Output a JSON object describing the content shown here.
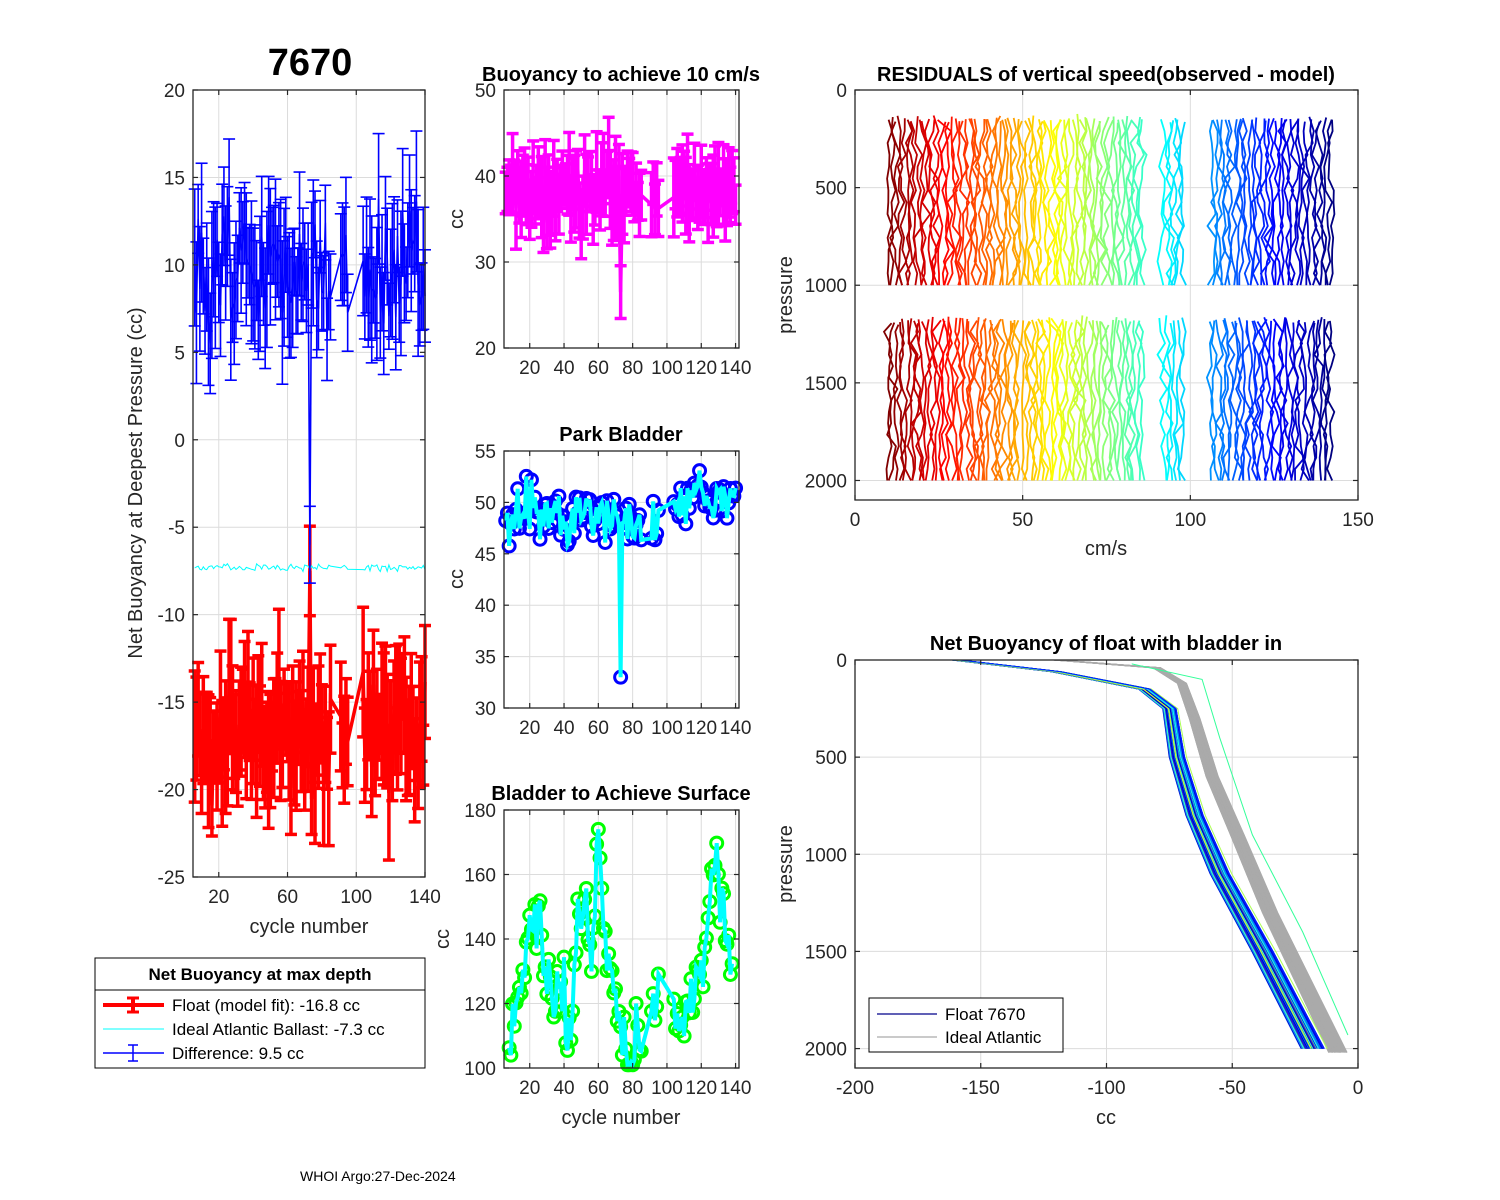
{
  "figure": {
    "float_id": "7670",
    "footer": "WHOI Argo:27-Dec-2024"
  },
  "chart_data": [
    {
      "id": "netbuoy",
      "type": "line",
      "title": "7670",
      "xlabel": "cycle number",
      "ylabel": "Net Buoyancy at Deepest Pressure (cc)",
      "xlim": [
        5,
        140
      ],
      "ylim": [
        -25,
        20
      ],
      "xticks": [
        20,
        60,
        100,
        140
      ],
      "yticks": [
        -25,
        -20,
        -15,
        -10,
        -5,
        0,
        5,
        10,
        15,
        20
      ],
      "grid": true,
      "legend": {
        "title": "Net Buoyancy at max depth",
        "placement": "below",
        "entries": [
          {
            "label": "Float (model fit): -16.8 cc",
            "color": "#ff0000"
          },
          {
            "label": "Ideal Atlantic Ballast:  -7.3 cc",
            "color": "#00ffff"
          },
          {
            "label": "Difference:   9.5 cc",
            "color": "#0000ff"
          }
        ]
      },
      "series": [
        {
          "name": "Float (model fit)",
          "color": "#ff0000",
          "mean": -16.8,
          "spread": 2.5,
          "errorbar": 2.8,
          "outlier": {
            "x": 73,
            "y": -7.5
          }
        },
        {
          "name": "Ideal Atlantic Ballast",
          "color": "#00ffff",
          "mean": -7.3,
          "spread": 0.15
        },
        {
          "name": "Difference",
          "color": "#0000ff",
          "mean": 9.5,
          "spread": 2.5,
          "errorbar": 3.0,
          "outlier": {
            "x": 73,
            "y": -6.0
          }
        }
      ],
      "cycle_gaps": [
        [
          86,
          90
        ],
        [
          96,
          103
        ]
      ]
    },
    {
      "id": "buoy10",
      "type": "line",
      "title": "Buoyancy to achieve 10 cm/s",
      "xlabel": "",
      "ylabel": "cc",
      "xlim": [
        5,
        142
      ],
      "ylim": [
        20,
        50
      ],
      "xticks": [
        20,
        40,
        60,
        80,
        100,
        120,
        140
      ],
      "yticks": [
        20,
        30,
        40,
        50
      ],
      "grid": true,
      "series": [
        {
          "name": "buoyancy",
          "color": "#ff00ff",
          "mean": 38.5,
          "spread": 2.5,
          "errorbar": 3.5,
          "outlier": {
            "x": 73,
            "y": 26.5
          }
        }
      ]
    },
    {
      "id": "park",
      "type": "line",
      "title": "Park Bladder",
      "xlabel": "",
      "ylabel": "cc",
      "xlim": [
        5,
        142
      ],
      "ylim": [
        30,
        55
      ],
      "xticks": [
        20,
        40,
        60,
        80,
        100,
        120,
        140
      ],
      "yticks": [
        30,
        35,
        40,
        45,
        50,
        55
      ],
      "grid": true,
      "series": [
        {
          "name": "park bladder",
          "color": "#00ffff",
          "marker_color": "#0000ff",
          "mean": 48.5,
          "spread": 2.3,
          "outlier": {
            "x": 73,
            "y": 33
          }
        }
      ]
    },
    {
      "id": "surface",
      "type": "line",
      "title": "Bladder to Achieve Surface",
      "xlabel": "cycle number",
      "ylabel": "cc",
      "xlim": [
        5,
        142
      ],
      "ylim": [
        100,
        180
      ],
      "xticks": [
        20,
        40,
        60,
        80,
        100,
        120,
        140
      ],
      "yticks": [
        100,
        120,
        140,
        160,
        180
      ],
      "grid": true,
      "series": [
        {
          "name": "surface bladder",
          "color": "#00ffff",
          "marker_color": "#00ff00",
          "anchors": [
            [
              8,
              114
            ],
            [
              12,
              118
            ],
            [
              18,
              140
            ],
            [
              22,
              145
            ],
            [
              26,
              140
            ],
            [
              30,
              125
            ],
            [
              35,
              130
            ],
            [
              40,
              122
            ],
            [
              44,
              108
            ],
            [
              48,
              145
            ],
            [
              52,
              155
            ],
            [
              56,
              128
            ],
            [
              60,
              174
            ],
            [
              64,
              140
            ],
            [
              68,
              130
            ],
            [
              72,
              115
            ],
            [
              76,
              105
            ],
            [
              80,
              102
            ],
            [
              84,
              110
            ],
            [
              90,
              116
            ],
            [
              95,
              124
            ],
            [
              105,
              112
            ],
            [
              110,
              118
            ],
            [
              115,
              122
            ],
            [
              120,
              132
            ],
            [
              125,
              147
            ],
            [
              128,
              162
            ],
            [
              132,
              150
            ],
            [
              138,
              134
            ]
          ]
        }
      ]
    },
    {
      "id": "residuals",
      "type": "line",
      "title": "RESIDUALS of vertical speed(observed - model)",
      "xlabel": "cm/s",
      "ylabel": "pressure",
      "xlim": [
        0,
        150
      ],
      "ylim": [
        0,
        2100
      ],
      "y_reversed": true,
      "xticks": [
        0,
        50,
        100,
        150
      ],
      "yticks": [
        0,
        500,
        1000,
        1500,
        2000
      ],
      "grid": true,
      "colormap": "jet",
      "segments": [
        [
          150,
          1000
        ],
        [
          1180,
          2000
        ]
      ],
      "x_offsets_range": [
        10,
        142
      ],
      "gap_ranges": [
        [
          86,
          92
        ],
        [
          98,
          106
        ]
      ]
    },
    {
      "id": "bladderin",
      "type": "line",
      "title": "Net Buoyancy of float with bladder in",
      "xlabel": "cc",
      "ylabel": "pressure",
      "xlim": [
        -200,
        0
      ],
      "ylim": [
        0,
        2100
      ],
      "y_reversed": true,
      "xticks": [
        -200,
        -150,
        -100,
        -50,
        0
      ],
      "yticks": [
        0,
        500,
        1000,
        1500,
        2000
      ],
      "grid": true,
      "legend": {
        "placement": "bottom-left",
        "entries": [
          {
            "label": "Float 7670",
            "color": "#00008b"
          },
          {
            "label": "Ideal Atlantic",
            "color": "#aaaaaa"
          }
        ]
      },
      "profile_float": [
        [
          -160,
          0
        ],
        [
          -120,
          60
        ],
        [
          -85,
          150
        ],
        [
          -75,
          250
        ],
        [
          -72,
          500
        ],
        [
          -65,
          800
        ],
        [
          -55,
          1100
        ],
        [
          -38,
          1500
        ],
        [
          -18,
          2000
        ]
      ],
      "profile_ideal": [
        [
          -120,
          0
        ],
        [
          -80,
          40
        ],
        [
          -70,
          120
        ],
        [
          -65,
          300
        ],
        [
          -58,
          600
        ],
        [
          -48,
          900
        ],
        [
          -35,
          1300
        ],
        [
          -20,
          1700
        ],
        [
          -8,
          2020
        ]
      ],
      "profile_outlier": [
        [
          -90,
          20
        ],
        [
          -62,
          100
        ],
        [
          -55,
          400
        ],
        [
          -42,
          900
        ],
        [
          -22,
          1400
        ],
        [
          -4,
          1930
        ]
      ]
    }
  ]
}
